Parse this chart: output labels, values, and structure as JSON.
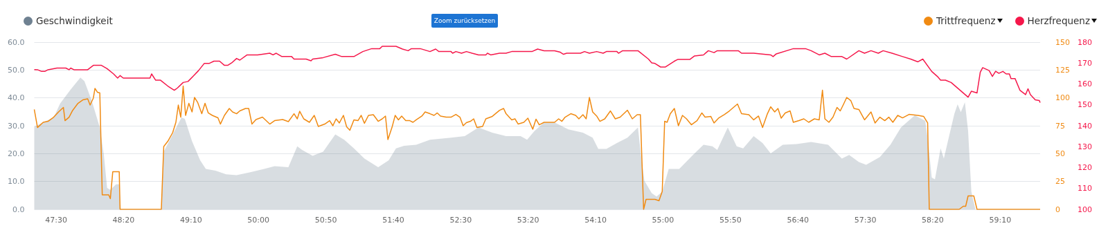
{
  "chart_data": {
    "type": "line",
    "annotations": [
      "Zoom zurücksetzen"
    ],
    "xlim": [
      47.23,
      59.66
    ],
    "xticks": [
      {
        "value": 47.5,
        "label": "47:30"
      },
      {
        "value": 48.333,
        "label": "48:20"
      },
      {
        "value": 49.167,
        "label": "49:10"
      },
      {
        "value": 50,
        "label": "50:00"
      },
      {
        "value": 50.833,
        "label": "50:50"
      },
      {
        "value": 51.667,
        "label": "51:40"
      },
      {
        "value": 52.5,
        "label": "52:30"
      },
      {
        "value": 53.333,
        "label": "53:20"
      },
      {
        "value": 54.167,
        "label": "54:10"
      },
      {
        "value": 55,
        "label": "55:00"
      },
      {
        "value": 55.833,
        "label": "55:50"
      },
      {
        "value": 56.667,
        "label": "56:40"
      },
      {
        "value": 57.5,
        "label": "57:30"
      },
      {
        "value": 58.333,
        "label": "58:20"
      },
      {
        "value": 59.167,
        "label": "59:10"
      }
    ],
    "ylim": [
      0,
      60
    ],
    "yticks": [
      {
        "value": 0,
        "label": "0.0"
      },
      {
        "value": 10,
        "label": "10.0"
      },
      {
        "value": 20,
        "label": "20.0"
      },
      {
        "value": 30,
        "label": "30.0"
      },
      {
        "value": 40,
        "label": "40.0"
      },
      {
        "value": 50,
        "label": "50.0"
      },
      {
        "value": 60,
        "label": "60.0"
      }
    ],
    "y2lim": [
      0,
      150
    ],
    "y2ticks": [
      0,
      25,
      50,
      75,
      100,
      125,
      150
    ],
    "y3lim": [
      100,
      180
    ],
    "y3ticks": [
      100,
      110,
      120,
      130,
      140,
      150,
      160,
      170,
      180
    ],
    "grid": "y",
    "legend": "top",
    "marker": "none",
    "series": [
      {
        "name": "Geschwindigkeit",
        "type": "area",
        "axis": "y",
        "color": "#6f8191",
        "x": [
          47.23,
          47.47,
          47.55,
          47.68,
          47.8,
          47.85,
          47.94,
          48.04,
          48.09,
          48.13,
          48.17,
          48.24,
          48.28,
          48.3,
          48.8,
          48.83,
          48.96,
          49.05,
          49.09,
          49.18,
          49.28,
          49.35,
          49.47,
          49.6,
          49.73,
          49.9,
          50.07,
          50.2,
          50.37,
          50.48,
          50.54,
          50.67,
          50.8,
          50.95,
          51.06,
          51.18,
          51.31,
          51.48,
          51.61,
          51.7,
          51.8,
          51.95,
          52.12,
          52.38,
          52.55,
          52.72,
          52.89,
          53.06,
          53.24,
          53.32,
          53.41,
          53.53,
          53.66,
          53.83,
          54.01,
          54.13,
          54.2,
          54.3,
          54.43,
          54.56,
          54.69,
          54.73,
          54.77,
          54.86,
          54.92,
          54.99,
          55.07,
          55.2,
          55.37,
          55.5,
          55.61,
          55.67,
          55.8,
          55.91,
          55.99,
          56.12,
          56.23,
          56.33,
          56.48,
          56.65,
          56.83,
          57.04,
          57.21,
          57.3,
          57.42,
          57.51,
          57.68,
          57.81,
          57.94,
          58.11,
          58.24,
          58.28,
          58.32,
          58.36,
          58.43,
          58.47,
          58.51,
          58.6,
          58.64,
          58.68,
          58.73,
          58.77,
          58.81,
          58.86,
          59.66
        ],
        "values": [
          29.7,
          33,
          38,
          43,
          47.3,
          46,
          39,
          29.4,
          19.5,
          7.7,
          7,
          9,
          9,
          0,
          0,
          20.7,
          28,
          33,
          32.5,
          24.4,
          17.6,
          14.5,
          13.9,
          12.6,
          12.3,
          13.3,
          14.5,
          15.5,
          15.1,
          22.6,
          21.3,
          19.2,
          20.7,
          26.9,
          25,
          21.9,
          18.2,
          15.1,
          17.6,
          21.9,
          22.8,
          23.2,
          25,
          25.7,
          26.3,
          29.4,
          27.5,
          26.3,
          26.3,
          25,
          28.1,
          31.2,
          31.2,
          28.7,
          27.5,
          25.7,
          21.7,
          21.7,
          23.8,
          25.7,
          29.4,
          18.8,
          10.2,
          5.8,
          4.6,
          6.4,
          14.5,
          14.5,
          19.5,
          23.2,
          22.6,
          21.3,
          29.4,
          22.6,
          21.9,
          26.3,
          23.8,
          20.1,
          23.2,
          23.4,
          24.2,
          23.2,
          18.2,
          19.5,
          17,
          16,
          18.8,
          23.2,
          29.4,
          33.7,
          31.8,
          23.2,
          11.4,
          10.8,
          21.9,
          18.2,
          23.2,
          34.3,
          37.7,
          34.9,
          38.4,
          28.1,
          6.4,
          0,
          0
        ]
      },
      {
        "name": "Trittfrequenz",
        "type": "line",
        "axis": "y2",
        "color": "#f08a12",
        "x": [
          47.23,
          47.27,
          47.34,
          47.4,
          47.47,
          47.53,
          47.59,
          47.61,
          47.66,
          47.7,
          47.77,
          47.83,
          47.89,
          47.92,
          47.96,
          47.98,
          48.01,
          48.04,
          48.07,
          48.15,
          48.17,
          48.2,
          48.28,
          48.29,
          48.8,
          48.83,
          48.88,
          48.94,
          48.98,
          49.01,
          49.04,
          49.07,
          49.1,
          49.14,
          49.18,
          49.21,
          49.25,
          49.3,
          49.34,
          49.38,
          49.43,
          49.5,
          49.53,
          49.58,
          49.64,
          49.68,
          49.73,
          49.77,
          49.84,
          49.88,
          49.92,
          49.97,
          50.05,
          50.14,
          50.2,
          50.3,
          50.37,
          50.44,
          50.48,
          50.51,
          50.56,
          50.63,
          50.69,
          50.74,
          50.82,
          50.88,
          50.92,
          50.96,
          51,
          51.05,
          51.09,
          51.13,
          51.18,
          51.23,
          51.27,
          51.31,
          51.36,
          51.42,
          51.48,
          51.53,
          51.57,
          51.6,
          51.65,
          51.69,
          51.73,
          51.77,
          51.82,
          51.87,
          51.91,
          51.95,
          52.02,
          52.06,
          52.12,
          52.17,
          52.21,
          52.25,
          52.32,
          52.38,
          52.44,
          52.49,
          52.53,
          52.57,
          52.62,
          52.66,
          52.7,
          52.77,
          52.81,
          52.89,
          52.98,
          53.03,
          53.06,
          53.13,
          53.17,
          53.21,
          53.28,
          53.33,
          53.39,
          53.43,
          53.47,
          53.53,
          53.66,
          53.71,
          53.75,
          53.79,
          53.86,
          53.92,
          53.96,
          54.01,
          54.05,
          54.09,
          54.13,
          54.18,
          54.22,
          54.28,
          54.35,
          54.41,
          54.47,
          54.56,
          54.62,
          54.68,
          54.72,
          54.76,
          54.79,
          54.9,
          54.95,
          54.99,
          55.02,
          55.05,
          55.09,
          55.14,
          55.19,
          55.24,
          55.29,
          55.35,
          55.42,
          55.48,
          55.52,
          55.59,
          55.63,
          55.69,
          55.76,
          55.82,
          55.92,
          55.97,
          56.06,
          56.12,
          56.18,
          56.23,
          56.29,
          56.33,
          56.38,
          56.42,
          56.46,
          56.51,
          56.57,
          56.61,
          56.68,
          56.74,
          56.8,
          56.87,
          56.93,
          56.97,
          57,
          57.05,
          57.1,
          57.15,
          57.19,
          57.23,
          57.27,
          57.32,
          57.36,
          57.42,
          57.49,
          57.57,
          57.62,
          57.68,
          57.74,
          57.79,
          57.84,
          57.9,
          57.96,
          58.04,
          58.15,
          58.22,
          58.27,
          58.29,
          58.66,
          58.71,
          58.74,
          58.77,
          58.84,
          58.88,
          59.66
        ],
        "values": [
          89.6,
          73.4,
          78.1,
          79,
          82.7,
          87.4,
          91.4,
          79.6,
          82.7,
          88.3,
          95.1,
          98.2,
          99.2,
          93.6,
          99.8,
          108.5,
          105.1,
          104.4,
          13,
          13,
          9.6,
          33.8,
          33.8,
          0,
          0,
          56.4,
          61,
          68.8,
          78.1,
          93.6,
          82.7,
          110.6,
          84.3,
          95.1,
          87.4,
          100.4,
          95.8,
          85.8,
          95.1,
          86.5,
          84.3,
          82.1,
          76.5,
          84.3,
          90.5,
          87.4,
          85.8,
          88.3,
          90.5,
          90.5,
          76.5,
          80.6,
          82.7,
          76.5,
          79.6,
          80.6,
          78.7,
          85.8,
          81.2,
          88,
          81.2,
          78.1,
          84.3,
          74.4,
          76.5,
          79.6,
          75,
          81.2,
          77.5,
          84.3,
          74.1,
          71,
          80.3,
          79.6,
          84.3,
          77.2,
          84.3,
          84.9,
          79,
          81.2,
          83.7,
          62.6,
          73.4,
          84.3,
          80.3,
          83.7,
          79.6,
          79.6,
          78.1,
          80.3,
          83.7,
          87.4,
          85.8,
          84.3,
          86.5,
          83.7,
          82.7,
          82.7,
          85.2,
          82.7,
          75,
          77.8,
          79,
          81.2,
          73.4,
          74.4,
          81.2,
          83.4,
          88.9,
          90.5,
          85.8,
          80.3,
          81.2,
          76.5,
          78.1,
          81.8,
          71.9,
          80.9,
          75.9,
          78.1,
          78.1,
          81.2,
          79,
          82.7,
          85.8,
          84.3,
          81.2,
          84.9,
          81.2,
          100.4,
          87.4,
          83.7,
          79,
          81.2,
          88.3,
          81.2,
          82.7,
          88.9,
          81.2,
          84.9,
          84.9,
          0,
          9,
          9,
          7.7,
          16.1,
          79,
          78.1,
          85.8,
          90.5,
          75,
          84.3,
          81.2,
          75.9,
          79.6,
          86.5,
          82.7,
          83.4,
          77.5,
          82.1,
          85.2,
          88.3,
          94.5,
          85.8,
          84.9,
          80.3,
          83.7,
          73.4,
          85.8,
          92,
          87.4,
          90.5,
          81.8,
          86.5,
          88.3,
          78.1,
          79.6,
          81.2,
          78.1,
          81.2,
          80.3,
          106.9,
          81.2,
          78.1,
          82.7,
          91.4,
          88.3,
          94.2,
          100.4,
          97.6,
          90.5,
          89.6,
          80.3,
          87.4,
          77.5,
          82.7,
          79.6,
          82.7,
          78.1,
          84.3,
          82.1,
          85.2,
          84.3,
          83.4,
          77.5,
          0,
          0,
          2.8,
          2.8,
          12.1,
          12.1,
          0,
          0
        ]
      },
      {
        "name": "Herzfrequenz",
        "type": "line",
        "axis": "y3",
        "color": "#f5174a",
        "x": [
          47.23,
          47.27,
          47.32,
          47.36,
          47.4,
          47.51,
          47.62,
          47.66,
          47.68,
          47.72,
          47.89,
          47.96,
          48.06,
          48.13,
          48.21,
          48.26,
          48.29,
          48.33,
          48.66,
          48.68,
          48.73,
          48.79,
          48.88,
          48.96,
          49,
          49.07,
          49.13,
          49.2,
          49.26,
          49.33,
          49.39,
          49.45,
          49.52,
          49.58,
          49.62,
          49.67,
          49.73,
          49.77,
          49.86,
          49.99,
          50.14,
          50.18,
          50.22,
          50.29,
          50.41,
          50.44,
          50.59,
          50.65,
          50.67,
          50.8,
          50.95,
          51.03,
          51.18,
          51.29,
          51.4,
          51.5,
          51.53,
          51.7,
          51.78,
          51.85,
          51.89,
          52,
          52.12,
          52.19,
          52.23,
          52.38,
          52.4,
          52.44,
          52.51,
          52.57,
          52.64,
          52.72,
          52.81,
          52.83,
          52.87,
          52.98,
          53.06,
          53.13,
          53.38,
          53.45,
          53.53,
          53.66,
          53.73,
          53.77,
          53.81,
          53.98,
          54.03,
          54.09,
          54.18,
          54.26,
          54.3,
          54.43,
          54.45,
          54.5,
          54.69,
          54.82,
          54.86,
          54.9,
          54.97,
          55.03,
          55.14,
          55.18,
          55.33,
          55.39,
          55.5,
          55.56,
          55.63,
          55.67,
          55.93,
          55.97,
          56.12,
          56.33,
          56.36,
          56.4,
          56.57,
          56.61,
          56.76,
          56.83,
          56.93,
          57,
          57.08,
          57.21,
          57.27,
          57.42,
          57.49,
          57.57,
          57.66,
          57.72,
          57.83,
          57.96,
          58.06,
          58.15,
          58.21,
          58.32,
          58.39,
          58.43,
          58.49,
          58.56,
          58.77,
          58.81,
          58.88,
          58.92,
          58.95,
          59.03,
          59.07,
          59.11,
          59.15,
          59.2,
          59.24,
          59.28,
          59.3,
          59.35,
          59.41,
          59.48,
          59.51,
          59.54,
          59.6,
          59.65,
          59.66
        ],
        "values": [
          166.9,
          166.8,
          166,
          166,
          166.8,
          167.6,
          167.6,
          166.8,
          167.6,
          166.8,
          166.8,
          168.9,
          168.9,
          167.3,
          164.8,
          162.8,
          164,
          162.8,
          162.8,
          164.8,
          161.8,
          161.8,
          159,
          157,
          158.1,
          160.7,
          161.2,
          164,
          166.4,
          169.8,
          169.8,
          170.9,
          170.9,
          168.9,
          168.9,
          170.1,
          172.2,
          171.4,
          173.9,
          173.9,
          174.7,
          173.9,
          174.7,
          173.1,
          173.1,
          171.9,
          171.9,
          171.1,
          171.9,
          172.6,
          174.2,
          173.1,
          173.1,
          175.5,
          176.9,
          176.9,
          178,
          178,
          176.7,
          175.9,
          176.9,
          176.9,
          175.5,
          176.7,
          175.5,
          175.5,
          174.7,
          175.5,
          174.7,
          175.5,
          174.7,
          173.9,
          173.9,
          174.7,
          173.9,
          174.7,
          174.7,
          175.5,
          175.5,
          176.7,
          175.9,
          175.9,
          175.2,
          174.2,
          174.7,
          174.7,
          175.5,
          174.7,
          175.5,
          174.7,
          175.5,
          175.5,
          174.7,
          175.9,
          175.9,
          171.9,
          170.1,
          169.8,
          168.1,
          168.1,
          170.9,
          171.7,
          171.7,
          173.4,
          173.9,
          175.9,
          175,
          175.9,
          175.9,
          174.7,
          174.7,
          173.9,
          173.1,
          174.4,
          176.4,
          176.9,
          176.9,
          175.9,
          173.9,
          174.7,
          173.1,
          173.1,
          171.9,
          175.9,
          174.7,
          175.9,
          174.7,
          175.9,
          174.7,
          173.1,
          171.9,
          170.6,
          171.9,
          166,
          163.6,
          161.8,
          161.8,
          160.7,
          153.7,
          156.5,
          155.7,
          165.6,
          167.8,
          166.4,
          163.6,
          166.1,
          165.1,
          166,
          164.8,
          164.8,
          162.6,
          162.6,
          157,
          154.9,
          157.7,
          154.9,
          152.4,
          152.1,
          151.1
        ]
      }
    ]
  }
}
